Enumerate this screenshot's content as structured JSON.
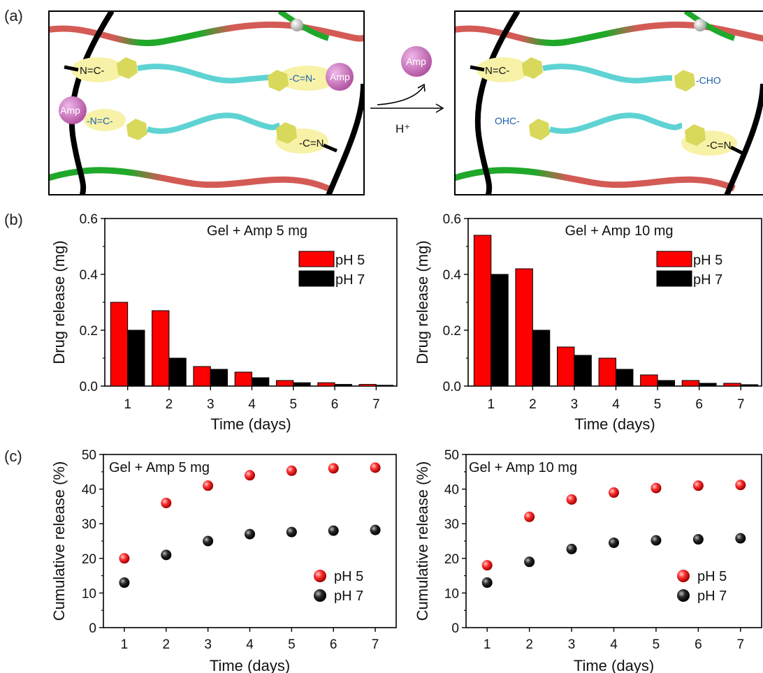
{
  "panel_labels": {
    "a": "(a)",
    "b": "(b)",
    "c": "(c)"
  },
  "schematic": {
    "amp": "Amp",
    "reagent": "H⁺",
    "left_labels": {
      "imine_left": "N=C-",
      "imine_right": "-C=N-",
      "amp_left": "Amp",
      "imine_left2": "-N=C-",
      "imine_end": "-C=N"
    },
    "right_labels": {
      "imine_left": "N=C-",
      "aldehyde": "-CHO",
      "aldehyde_left": "OHC-",
      "imine_end": "-C=N"
    },
    "colors": {
      "chain_red": "#d45a55",
      "chain_green": "#1fa82a",
      "linker": "#5fd3d3",
      "ring": "#d8d85a",
      "halo": "#f7f2a8",
      "amp": "#c96fc0"
    }
  },
  "chart_data": [
    {
      "type": "bar",
      "title": "Gel + Amp 5 mg",
      "xlabel": "Time (days)",
      "ylabel": "Drug release (mg)",
      "categories": [
        "1",
        "2",
        "3",
        "4",
        "5",
        "6",
        "7"
      ],
      "ylim": [
        0,
        0.6
      ],
      "yticks": [
        "0.0",
        "0.2",
        "0.4",
        "0.6"
      ],
      "series": [
        {
          "name": "pH 5",
          "color": "#ff0000",
          "values": [
            0.3,
            0.27,
            0.07,
            0.05,
            0.02,
            0.012,
            0.006
          ]
        },
        {
          "name": "pH 7",
          "color": "#000000",
          "values": [
            0.2,
            0.1,
            0.06,
            0.03,
            0.012,
            0.006,
            0.003
          ]
        }
      ],
      "legend": "top-right"
    },
    {
      "type": "bar",
      "title": "Gel + Amp 10 mg",
      "xlabel": "Time (days)",
      "ylabel": "Drug release (mg)",
      "categories": [
        "1",
        "2",
        "3",
        "4",
        "5",
        "6",
        "7"
      ],
      "ylim": [
        0,
        0.6
      ],
      "yticks": [
        "0.0",
        "0.2",
        "0.4",
        "0.6"
      ],
      "series": [
        {
          "name": "pH 5",
          "color": "#ff0000",
          "values": [
            0.54,
            0.42,
            0.14,
            0.1,
            0.04,
            0.02,
            0.01
          ]
        },
        {
          "name": "pH 7",
          "color": "#000000",
          "values": [
            0.4,
            0.2,
            0.11,
            0.06,
            0.02,
            0.01,
            0.005
          ]
        }
      ],
      "legend": "top-right"
    },
    {
      "type": "scatter",
      "title": "Gel + Amp 5 mg",
      "xlabel": "Time (days)",
      "ylabel": "Cumulative release (%)",
      "x": [
        1,
        2,
        3,
        4,
        5,
        6,
        7
      ],
      "xticks": [
        "1",
        "2",
        "3",
        "4",
        "5",
        "6",
        "7"
      ],
      "ylim": [
        0,
        50
      ],
      "yticks": [
        "0",
        "10",
        "20",
        "30",
        "40",
        "50"
      ],
      "series": [
        {
          "name": "pH 5",
          "color": "#ff2a2a",
          "values": [
            20,
            36,
            41,
            44,
            45.3,
            46,
            46.2
          ]
        },
        {
          "name": "pH 7",
          "color": "#111111",
          "values": [
            13,
            21,
            25,
            27,
            27.6,
            28,
            28.2
          ]
        }
      ],
      "legend": "bottom-right"
    },
    {
      "type": "scatter",
      "title": "Gel + Amp 10 mg",
      "xlabel": "Time (days)",
      "ylabel": "Cumulative release (%)",
      "x": [
        1,
        2,
        3,
        4,
        5,
        6,
        7
      ],
      "xticks": [
        "1",
        "2",
        "3",
        "4",
        "5",
        "6",
        "7"
      ],
      "ylim": [
        0,
        50
      ],
      "yticks": [
        "0",
        "10",
        "20",
        "30",
        "40",
        "50"
      ],
      "series": [
        {
          "name": "pH 5",
          "color": "#ff2a2a",
          "values": [
            18,
            32,
            37,
            39,
            40.3,
            41,
            41.2
          ]
        },
        {
          "name": "pH 7",
          "color": "#111111",
          "values": [
            13,
            19,
            22.7,
            24.5,
            25.2,
            25.5,
            25.8
          ]
        }
      ],
      "legend": "bottom-right"
    }
  ]
}
